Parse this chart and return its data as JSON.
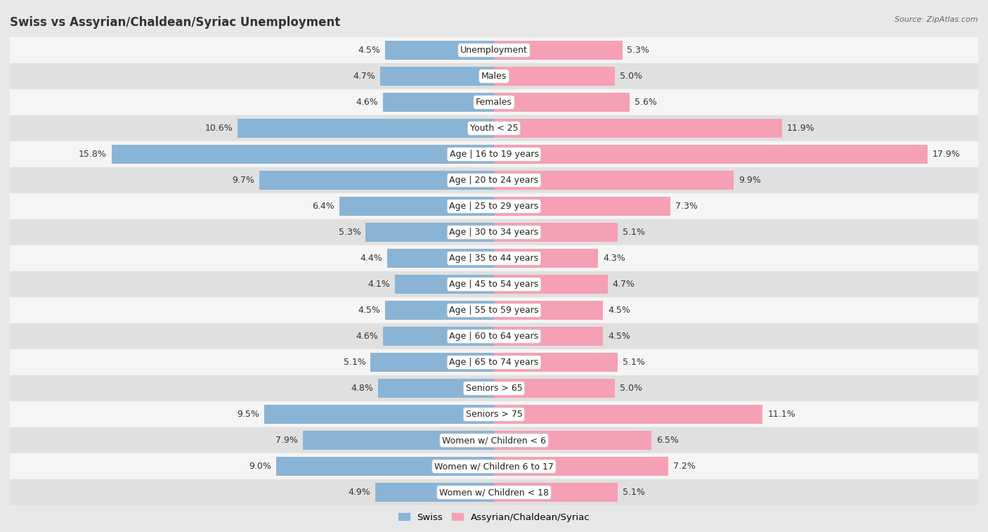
{
  "title": "Swiss vs Assyrian/Chaldean/Syriac Unemployment",
  "source": "Source: ZipAtlas.com",
  "categories": [
    "Unemployment",
    "Males",
    "Females",
    "Youth < 25",
    "Age | 16 to 19 years",
    "Age | 20 to 24 years",
    "Age | 25 to 29 years",
    "Age | 30 to 34 years",
    "Age | 35 to 44 years",
    "Age | 45 to 54 years",
    "Age | 55 to 59 years",
    "Age | 60 to 64 years",
    "Age | 65 to 74 years",
    "Seniors > 65",
    "Seniors > 75",
    "Women w/ Children < 6",
    "Women w/ Children 6 to 17",
    "Women w/ Children < 18"
  ],
  "swiss_values": [
    4.5,
    4.7,
    4.6,
    10.6,
    15.8,
    9.7,
    6.4,
    5.3,
    4.4,
    4.1,
    4.5,
    4.6,
    5.1,
    4.8,
    9.5,
    7.9,
    9.0,
    4.9
  ],
  "assyrian_values": [
    5.3,
    5.0,
    5.6,
    11.9,
    17.9,
    9.9,
    7.3,
    5.1,
    4.3,
    4.7,
    4.5,
    4.5,
    5.1,
    5.0,
    11.1,
    6.5,
    7.2,
    5.1
  ],
  "swiss_color": "#8ab4d5",
  "assyrian_color": "#f5a0b5",
  "axis_limit": 20.0,
  "bg_color": "#e8e8e8",
  "row_color_even": "#f5f5f5",
  "row_color_odd": "#e0e0e0",
  "label_fontsize": 9,
  "title_fontsize": 12,
  "legend_fontsize": 9.5,
  "value_fontsize": 9
}
